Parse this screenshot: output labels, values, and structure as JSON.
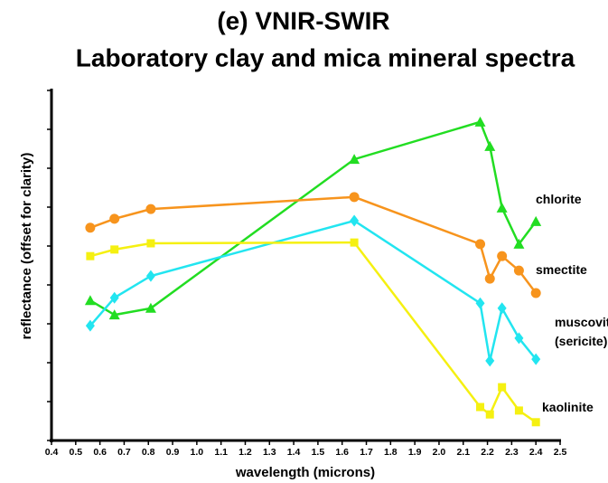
{
  "chart_data": {
    "type": "line",
    "title": "(e) VNIR-SWIR",
    "subtitle": "Laboratory clay and mica mineral spectra",
    "x_label": "wavelength (microns)",
    "y_label": "reflectance (offset for clarity)",
    "x": [
      0.56,
      0.66,
      0.81,
      1.65,
      2.17,
      2.21,
      2.26,
      2.33,
      2.4
    ],
    "xlim": [
      0.4,
      2.5
    ],
    "xticks": [
      0.4,
      0.5,
      0.6,
      0.7,
      0.8,
      0.9,
      {
        "value": 1,
        "label": "1.0"
      },
      1.1,
      1.2,
      1.3,
      1.4,
      1.5,
      1.6,
      1.7,
      1.8,
      1.9,
      {
        "value": 2,
        "label": "2.0"
      },
      2.1,
      2.2,
      2.3,
      2.4,
      2.5
    ],
    "ylim": [
      0,
      9
    ],
    "yticks": [
      0,
      1,
      2,
      3,
      4,
      5,
      6,
      7,
      8,
      9
    ],
    "series": [
      {
        "name": "chlorite",
        "color": "#22dd22",
        "marker": "triangle",
        "values": [
          3.6,
          3.23,
          3.4,
          7.23,
          8.19,
          7.56,
          5.98,
          5.05,
          5.63
        ]
      },
      {
        "name": "smectite",
        "color": "#f7941d",
        "marker": "circle",
        "values": [
          5.47,
          5.7,
          5.95,
          6.26,
          5.05,
          4.16,
          4.74,
          4.37,
          3.79
        ]
      },
      {
        "name": "muscovite (sericite)",
        "color": "#22e5f0",
        "marker": "diamond",
        "values": [
          2.95,
          3.67,
          4.23,
          5.65,
          3.53,
          2.05,
          3.4,
          2.63,
          2.09
        ]
      },
      {
        "name": "kaolinite",
        "color": "#f5f011",
        "marker": "square",
        "values": [
          4.74,
          4.91,
          5.07,
          5.09,
          0.86,
          0.67,
          1.37,
          0.77,
          0.47
        ]
      }
    ]
  }
}
